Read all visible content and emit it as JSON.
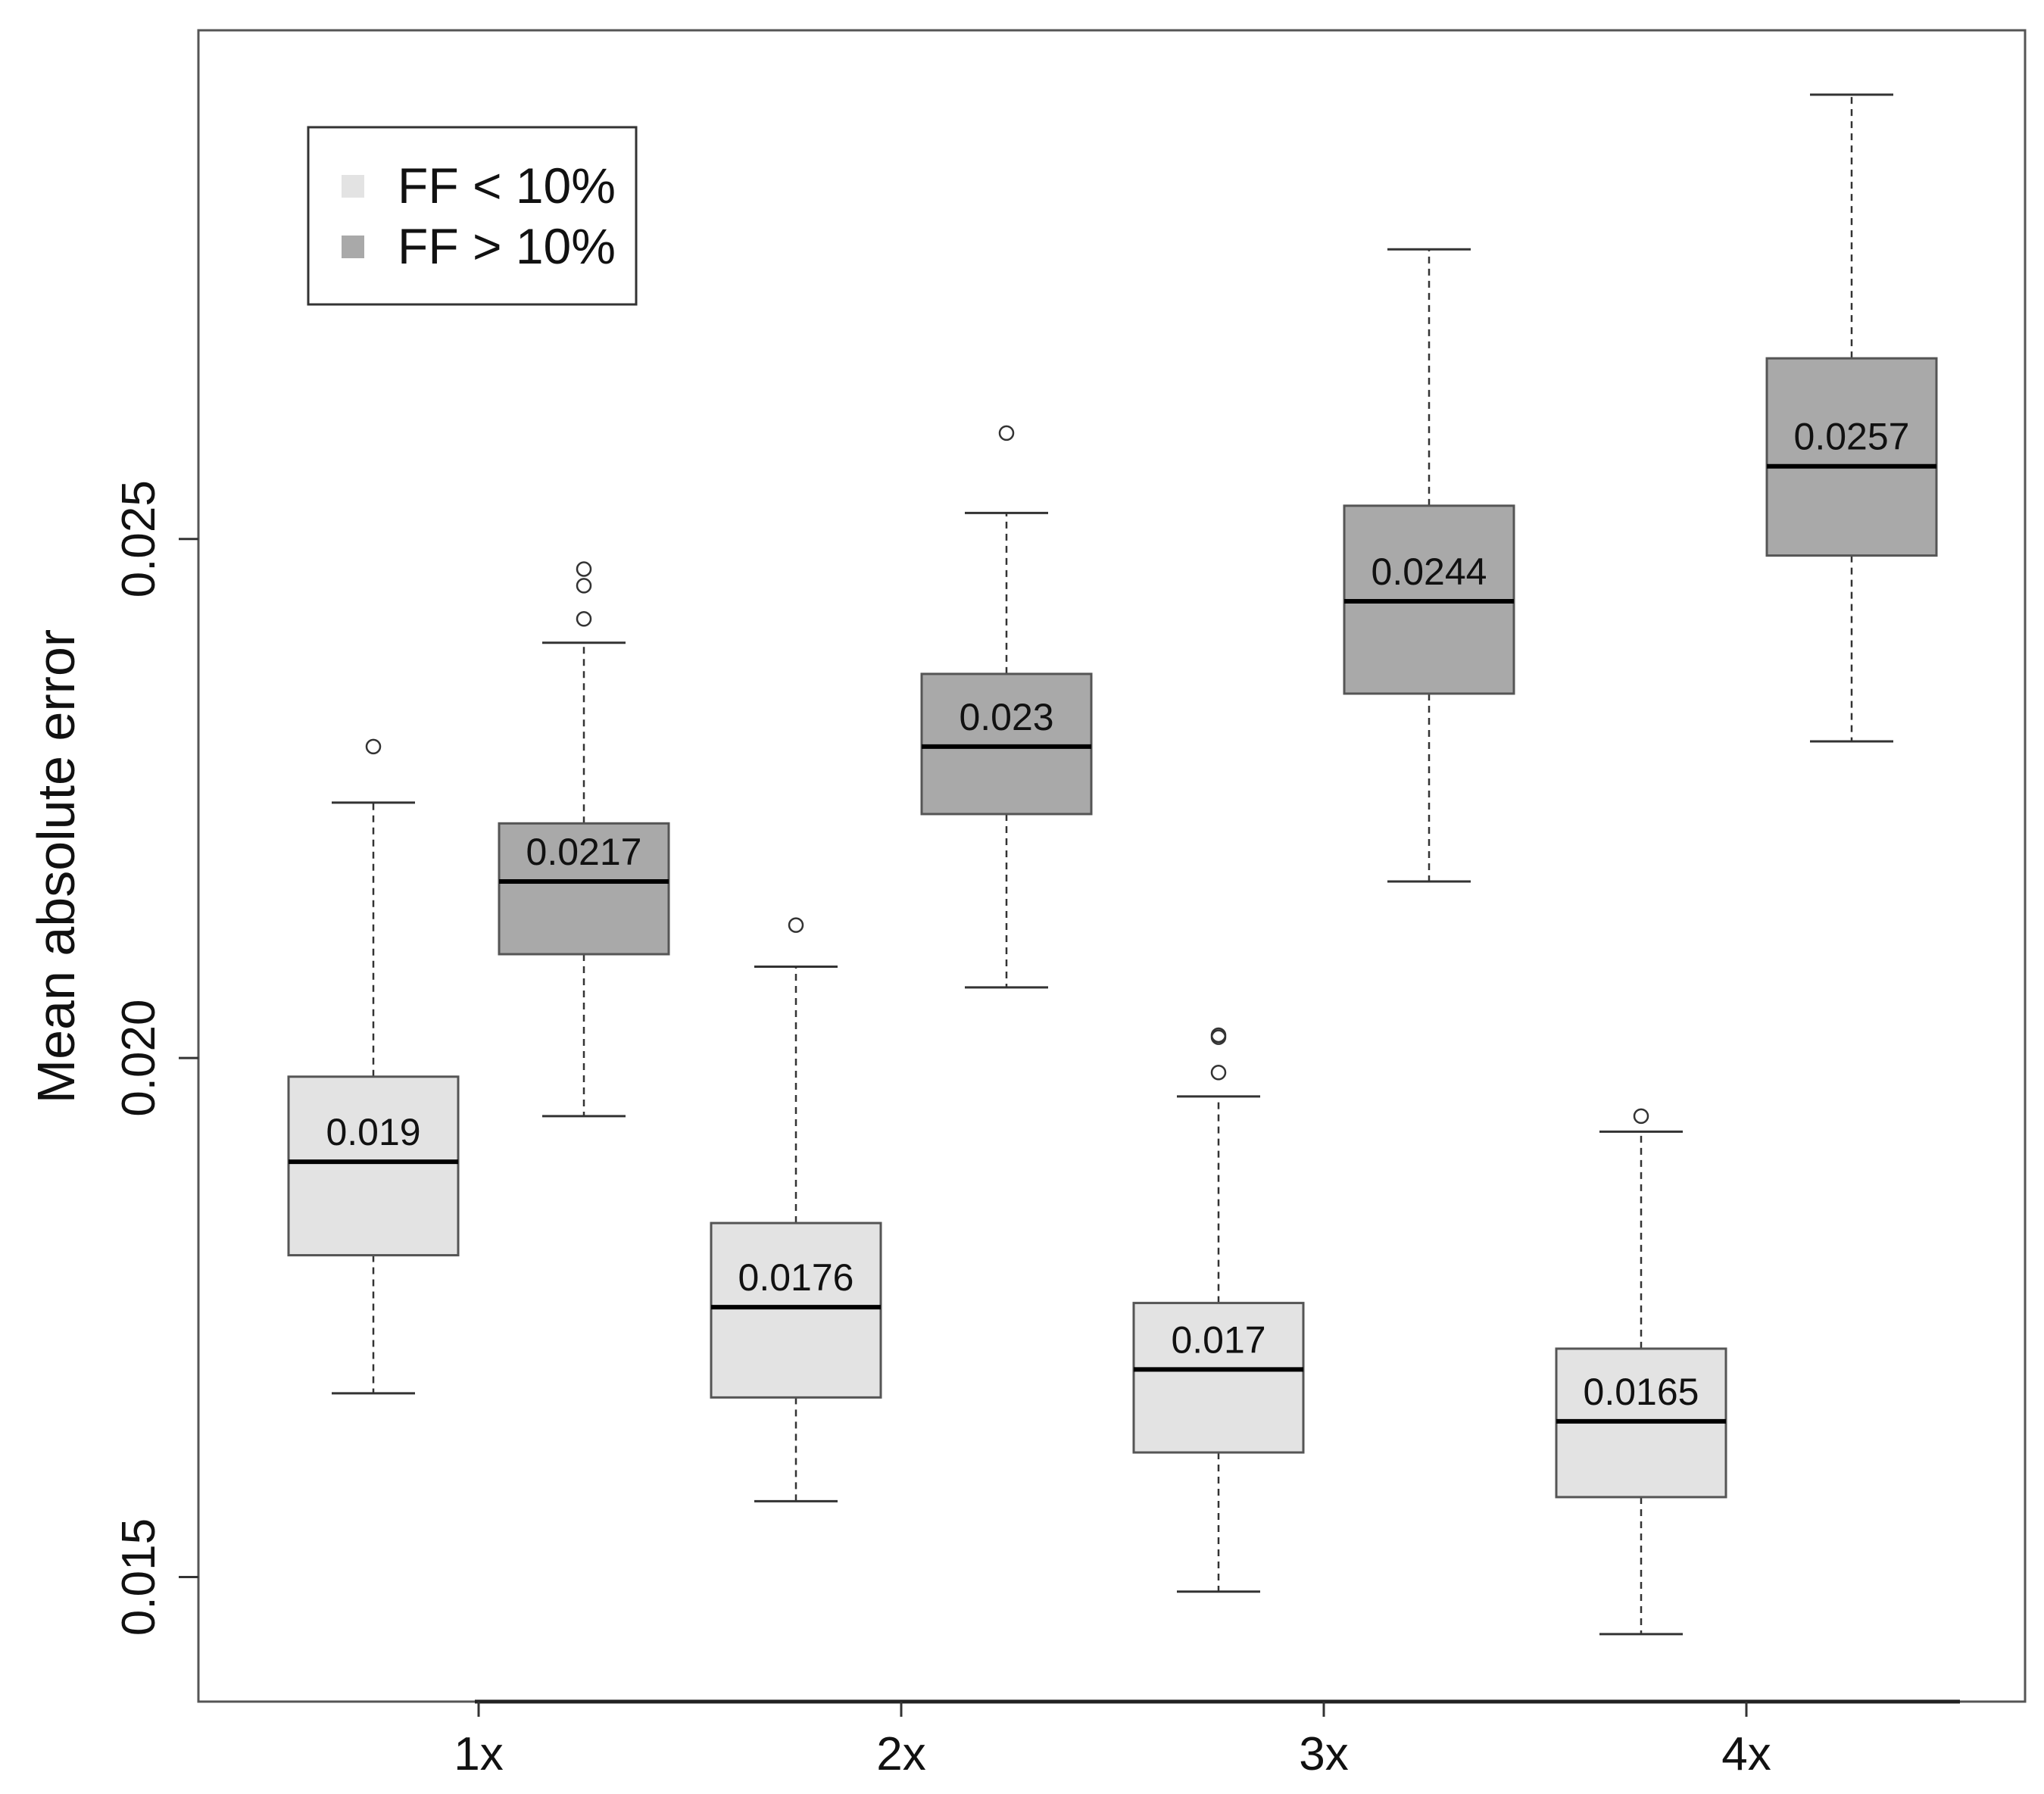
{
  "chart_data": {
    "type": "boxplot",
    "title": "",
    "xlabel": "",
    "ylabel": "Mean absolute error",
    "ylim": [
      0.0138,
      0.0299
    ],
    "yticks": [
      "0.015",
      "0.020",
      "0.025"
    ],
    "yticks_values": [
      0.015,
      0.02,
      0.025
    ],
    "categories": [
      "1x",
      "2x",
      "3x",
      "4x"
    ],
    "legend": {
      "position": "top-left",
      "entries": [
        {
          "label": "FF < 10%",
          "color": "#e3e3e3"
        },
        {
          "label": "FF > 10%",
          "color": "#a9a9a9"
        }
      ]
    },
    "series": [
      {
        "name": "FF < 10%",
        "color": "#e3e3e3",
        "boxes": [
          {
            "category": "1x",
            "whisker_low": 0.01677,
            "q1": 0.0181,
            "median": 0.019,
            "q3": 0.01982,
            "whisker_high": 0.02246,
            "outliers": [
              0.023
            ],
            "label": "0.019"
          },
          {
            "category": "2x",
            "whisker_low": 0.01573,
            "q1": 0.01673,
            "median": 0.0176,
            "q3": 0.01841,
            "whisker_high": 0.02088,
            "outliers": [
              0.02128
            ],
            "label": "0.0176"
          },
          {
            "category": "3x",
            "whisker_low": 0.01486,
            "q1": 0.0162,
            "median": 0.017,
            "q3": 0.01764,
            "whisker_high": 0.01963,
            "outliers": [
              0.01986,
              0.0202,
              0.02022
            ],
            "label": "0.017"
          },
          {
            "category": "4x",
            "whisker_low": 0.01445,
            "q1": 0.01577,
            "median": 0.0165,
            "q3": 0.0172,
            "whisker_high": 0.01929,
            "outliers": [
              0.01944
            ],
            "label": "0.0165"
          }
        ]
      },
      {
        "name": "FF > 10%",
        "color": "#a9a9a9",
        "boxes": [
          {
            "category": "1x",
            "whisker_low": 0.01944,
            "q1": 0.021,
            "median": 0.0217,
            "q3": 0.02226,
            "whisker_high": 0.024,
            "outliers": [
              0.02423,
              0.02455,
              0.02471
            ],
            "label": "0.0217"
          },
          {
            "category": "2x",
            "whisker_low": 0.02068,
            "q1": 0.02235,
            "median": 0.023,
            "q3": 0.0237,
            "whisker_high": 0.02525,
            "outliers": [
              0.02602
            ],
            "label": "0.023"
          },
          {
            "category": "3x",
            "whisker_low": 0.0217,
            "q1": 0.02351,
            "median": 0.0244,
            "q3": 0.02532,
            "whisker_high": 0.02779,
            "outliers": [],
            "label": "0.0244"
          },
          {
            "category": "4x",
            "whisker_low": 0.02305,
            "q1": 0.02484,
            "median": 0.0257,
            "q3": 0.02674,
            "whisker_high": 0.02928,
            "outliers": [],
            "label": "0.0257"
          }
        ]
      }
    ]
  }
}
